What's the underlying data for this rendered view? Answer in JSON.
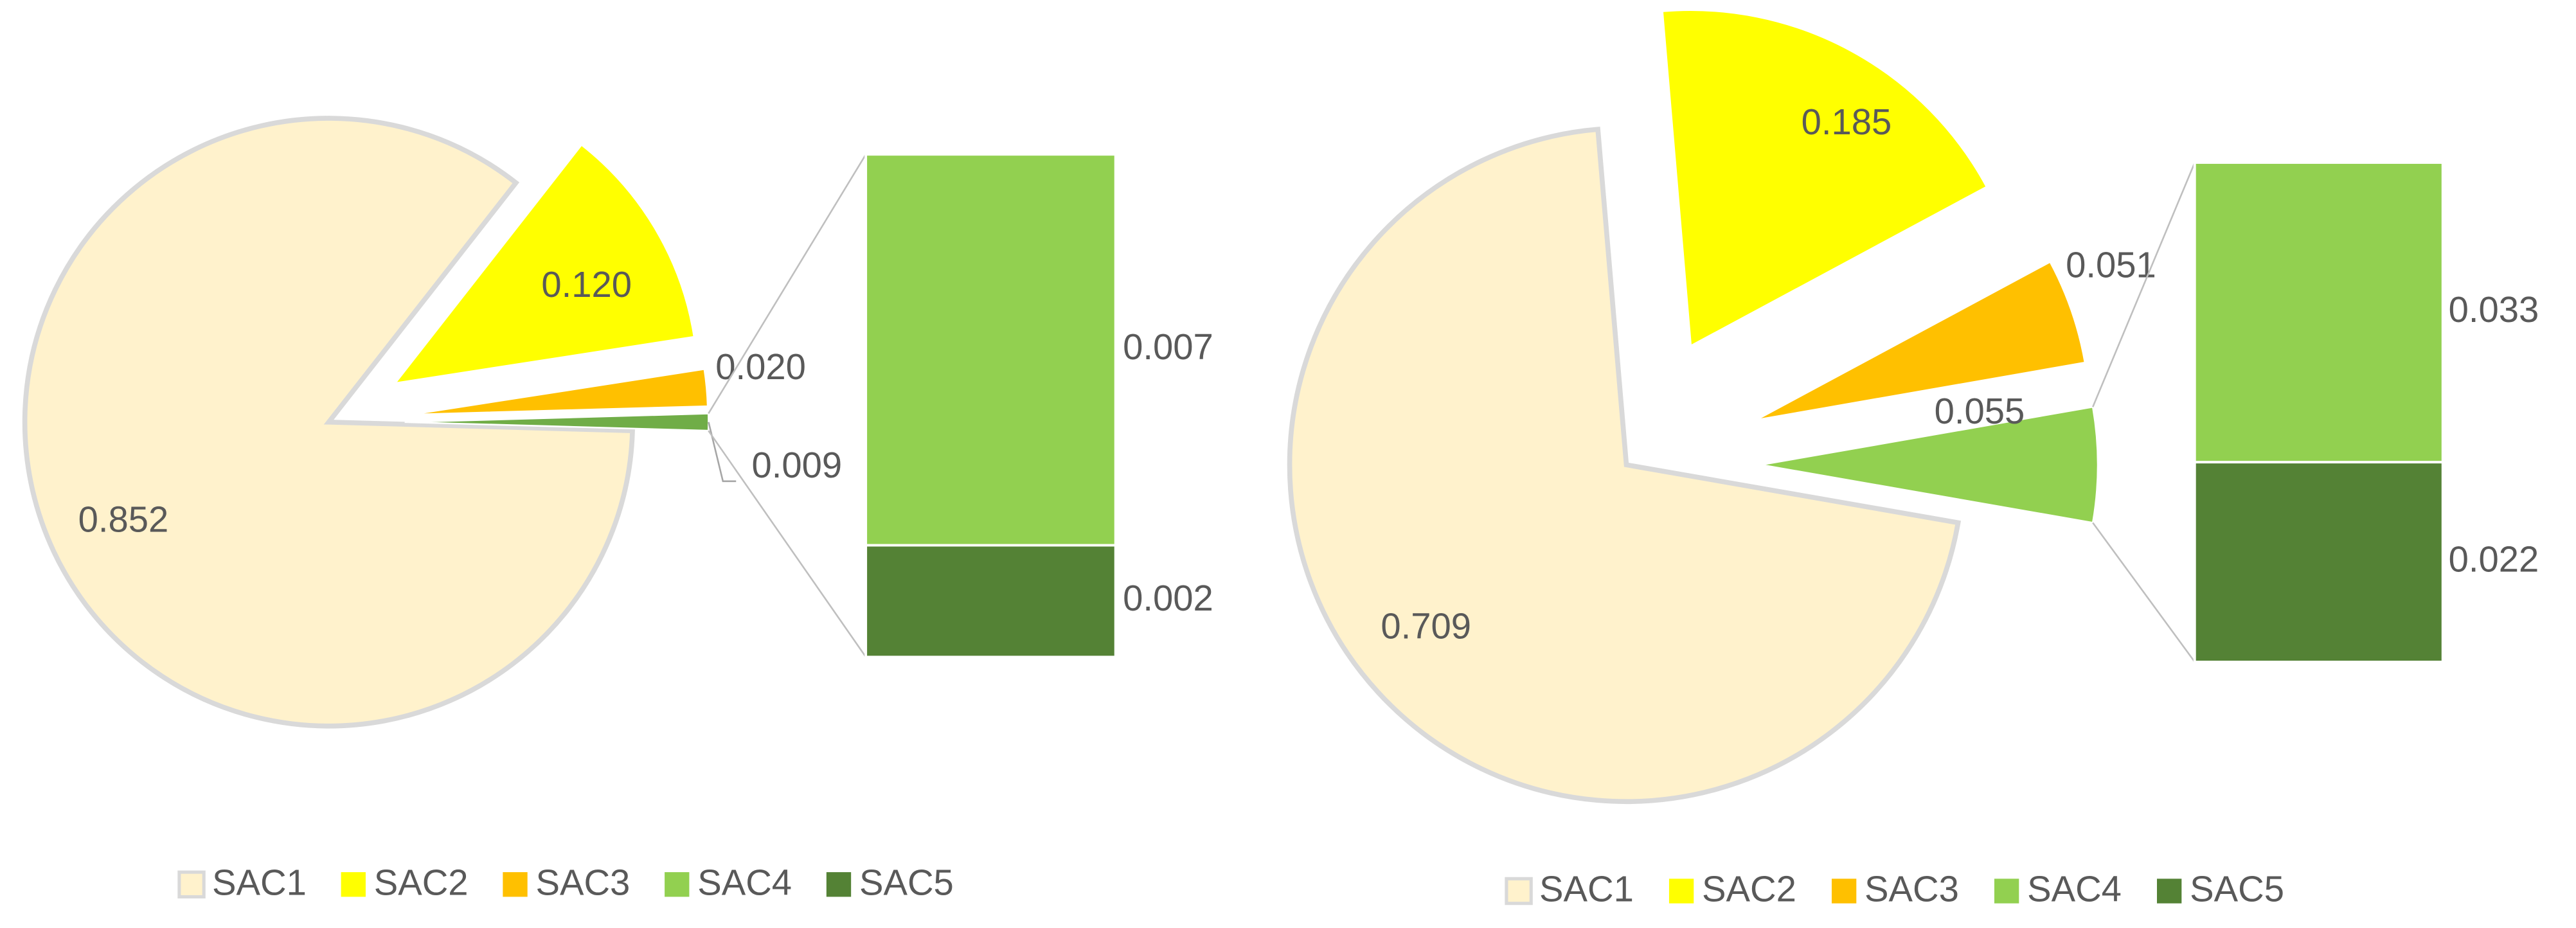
{
  "chart_data": [
    {
      "type": "bar-of-pie",
      "categories": [
        "SAC1",
        "SAC2",
        "SAC3",
        "SAC4",
        "SAC5"
      ],
      "values": [
        0.852,
        0.12,
        0.02,
        0.007,
        0.002
      ],
      "value_labels": [
        "0.852",
        "0.120",
        "0.020",
        "0.007",
        "0.002"
      ],
      "colors": [
        "#FFF2CC",
        "#FFFF00",
        "#FFC000",
        "#92D050",
        "#548235"
      ],
      "split_last": 2,
      "other_value": 0.009,
      "other_color": "#70AD47",
      "legend": "bottom"
    },
    {
      "type": "bar-of-pie",
      "categories": [
        "SAC1",
        "SAC2",
        "SAC3",
        "SAC4",
        "SAC5"
      ],
      "values": [
        0.709,
        0.185,
        0.051,
        0.033,
        0.022
      ],
      "colors": [
        "#FFF2CC",
        "#FFFF00",
        "#FFC000",
        "#92D050",
        "#548235"
      ],
      "split_last": 2,
      "other_value": 0.055,
      "other_color": "#92D050",
      "legend": "bottom"
    }
  ]
}
